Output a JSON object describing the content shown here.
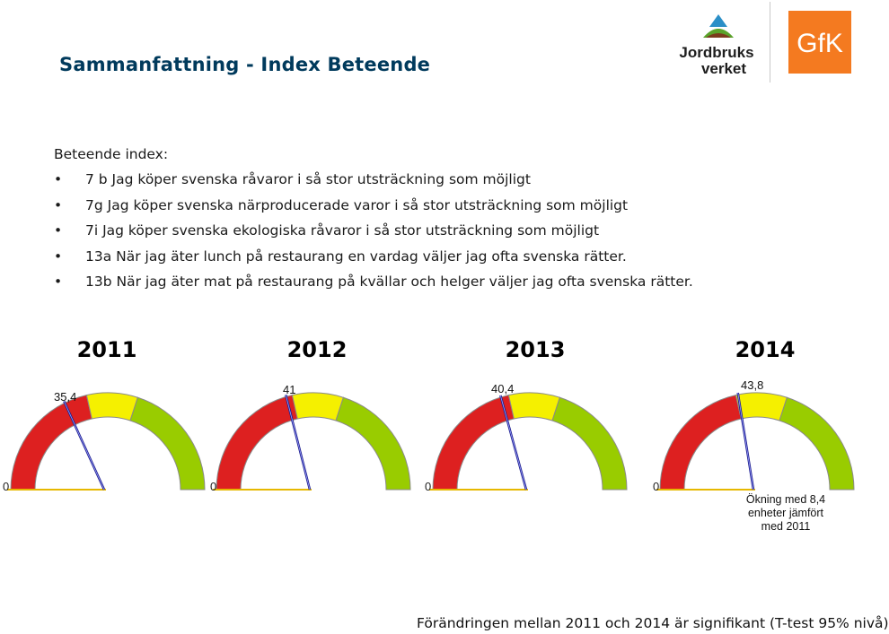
{
  "header": {
    "title": "Sammanfattning - Index Beteende",
    "logo_jordbruksverket_line1": "Jordbruks",
    "logo_jordbruksverket_line2": "verket",
    "logo_gfk": "GfK"
  },
  "intro": {
    "heading": "Beteende index:",
    "bullets": [
      "7 b Jag köper svenska råvaror i så stor utsträckning som möjligt",
      "7g Jag köper svenska närproducerade varor i så stor utsträckning som möjligt",
      "7i Jag köper svenska ekologiska råvaror i så stor utsträckning som möjligt",
      "13a När jag äter lunch på restaurang en vardag väljer jag ofta svenska rätter.",
      "13b När jag äter mat på restaurang på kvällar och helger väljer jag ofta svenska rätter."
    ]
  },
  "chart_data": {
    "type": "gauge",
    "scale_min": 0,
    "scale_max": 100,
    "zones": [
      {
        "from": 0,
        "to": 43,
        "color": "#dd2020"
      },
      {
        "from": 43,
        "to": 60,
        "color": "#f5f000"
      },
      {
        "from": 60,
        "to": 100,
        "color": "#99cc00"
      }
    ],
    "gauges": [
      {
        "year": "2011",
        "value": 35.4,
        "value_label": "35,4",
        "min_label": "0"
      },
      {
        "year": "2012",
        "value": 41,
        "value_label": "41",
        "min_label": "0"
      },
      {
        "year": "2013",
        "value": 40.4,
        "value_label": "40,4",
        "min_label": "0"
      },
      {
        "year": "2014",
        "value": 43.8,
        "value_label": "43,8",
        "min_label": "0"
      }
    ],
    "annotation": "Ökning med 8,4 enheter jämfört med 2011"
  },
  "footer": {
    "note": "Förändringen mellan 2011 och 2014 är signifikant (T-test 95% nivå)"
  }
}
